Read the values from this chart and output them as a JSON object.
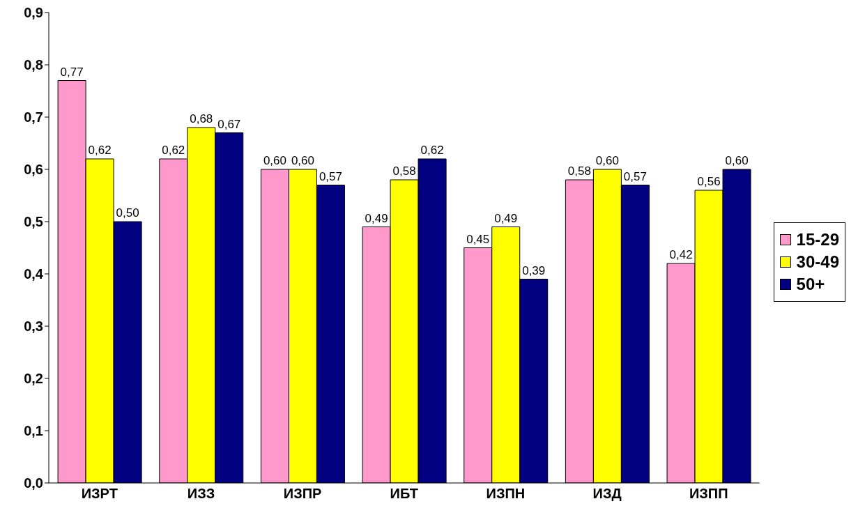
{
  "chart_data": {
    "type": "bar",
    "categories": [
      "ИЗРТ",
      "ИЗЗ",
      "ИЗПР",
      "ИБТ",
      "ИЗПН",
      "ИЗД",
      "ИЗПП"
    ],
    "series": [
      {
        "name": "15-29",
        "color": "#ff99cc",
        "values": [
          0.77,
          0.62,
          0.6,
          0.49,
          0.45,
          0.58,
          0.42
        ],
        "value_labels": [
          "0,77",
          "0,62",
          "0,60",
          "0,49",
          "0,45",
          "0,58",
          "0,42"
        ]
      },
      {
        "name": "30-49",
        "color": "#ffff00",
        "values": [
          0.62,
          0.68,
          0.6,
          0.58,
          0.49,
          0.6,
          0.56
        ],
        "value_labels": [
          "0,62",
          "0,68",
          "0,60",
          "0,58",
          "0,49",
          "0,60",
          "0,56"
        ]
      },
      {
        "name": "50+",
        "color": "#000080",
        "values": [
          0.5,
          0.67,
          0.57,
          0.62,
          0.39,
          0.57,
          0.6
        ],
        "value_labels": [
          "0,50",
          "0,67",
          "0,57",
          "0,62",
          "0,39",
          "0,57",
          "0,60"
        ]
      }
    ],
    "ylim": [
      0,
      0.9
    ],
    "yticks": [
      {
        "value": 0,
        "label": "0,0"
      },
      {
        "value": 0.1,
        "label": "0,1"
      },
      {
        "value": 0.2,
        "label": "0,2"
      },
      {
        "value": 0.3,
        "label": "0,3"
      },
      {
        "value": 0.4,
        "label": "0,4"
      },
      {
        "value": 0.5,
        "label": "0,5"
      },
      {
        "value": 0.6,
        "label": "0,6"
      },
      {
        "value": 0.7,
        "label": "0,7"
      },
      {
        "value": 0.8,
        "label": "0,8"
      },
      {
        "value": 0.9,
        "label": "0,9"
      }
    ],
    "grid": false,
    "legend": "right"
  }
}
